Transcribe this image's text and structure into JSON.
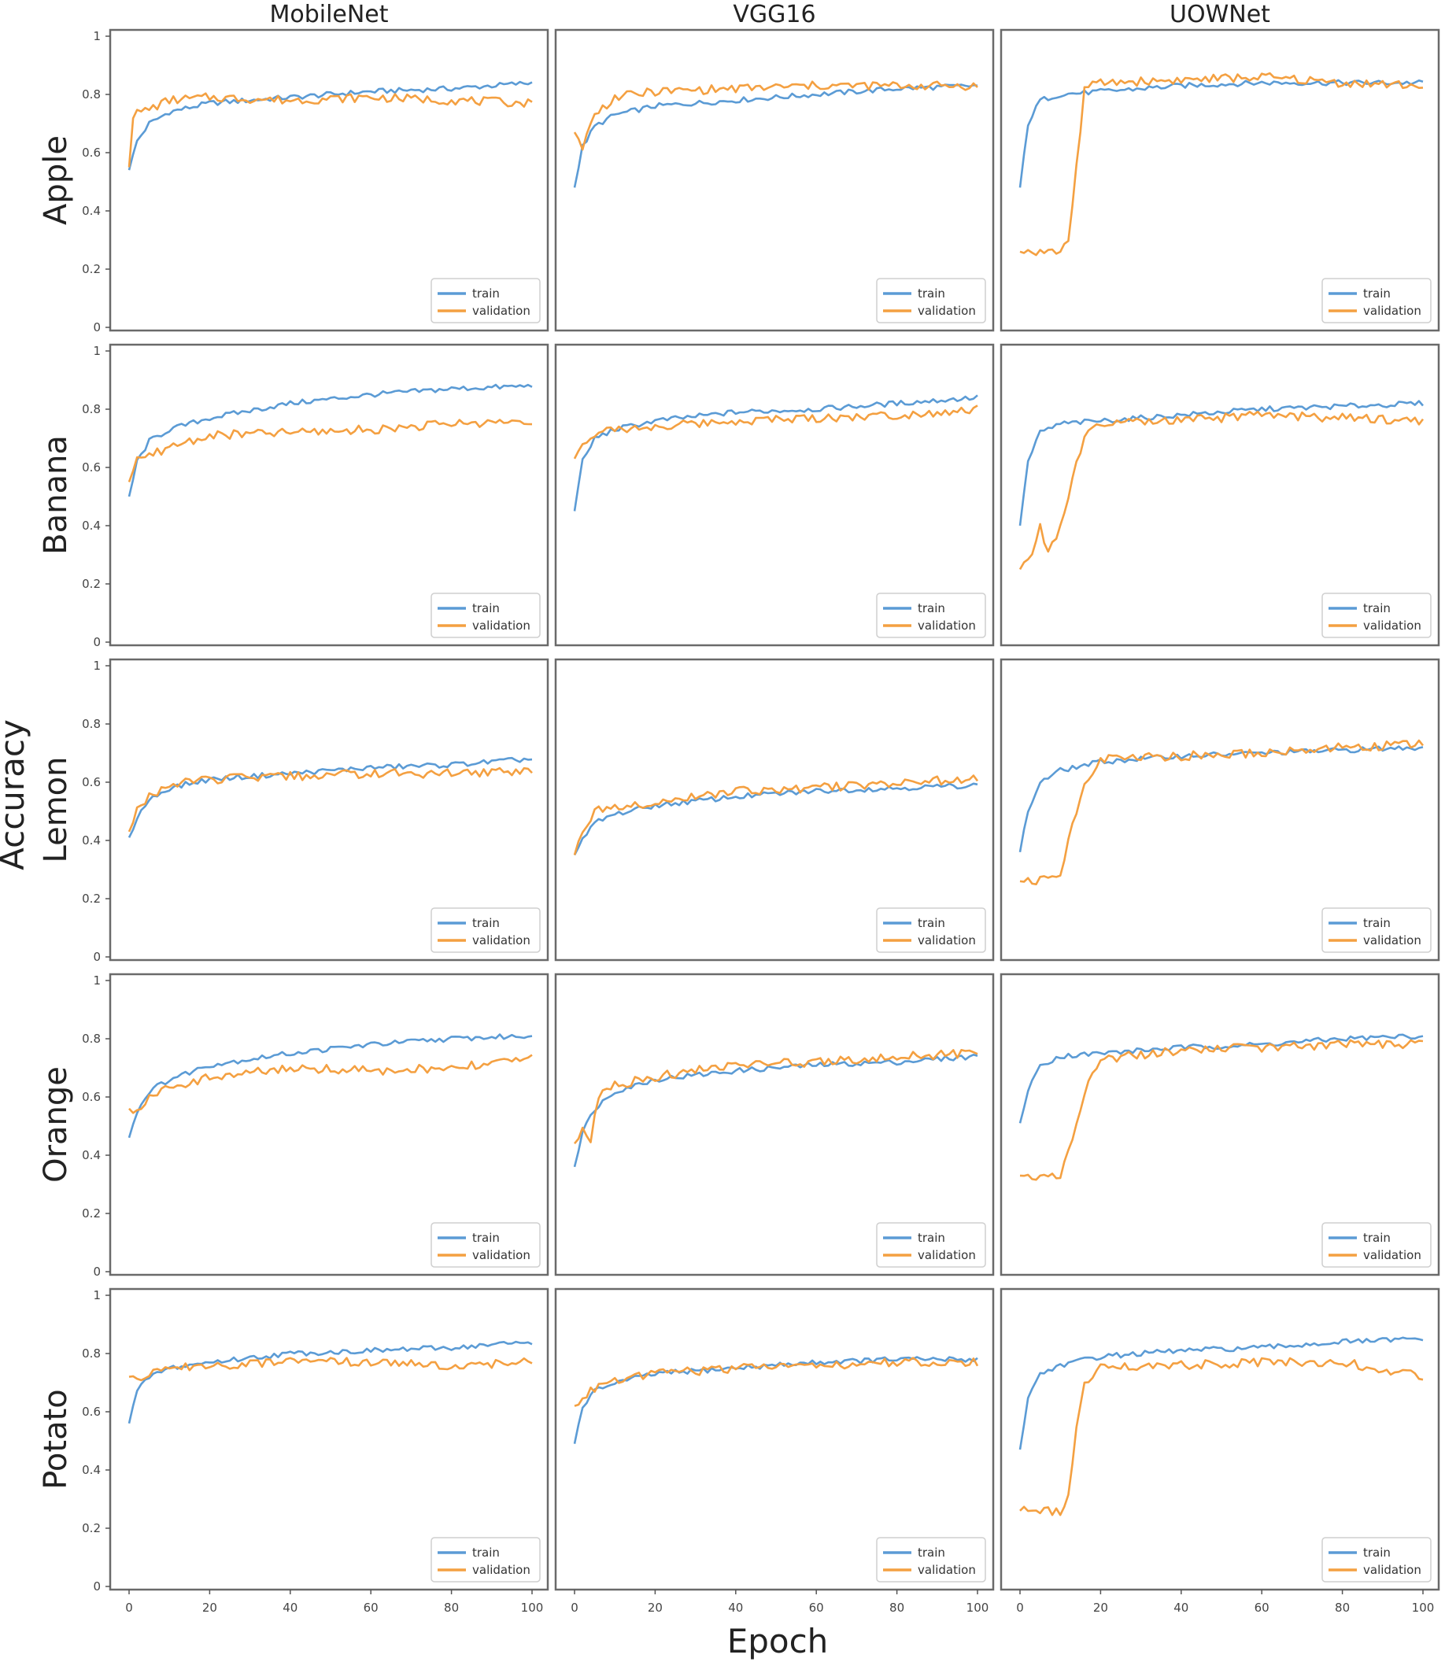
{
  "chart_data": {
    "type": "line",
    "title": "",
    "ylabel": "Accuracy",
    "xlabel": "Epoch",
    "models": [
      "MobileNet",
      "VGG16",
      "UOWNet"
    ],
    "classes": [
      "Apple",
      "Banana",
      "Lemon",
      "Orange",
      "Potato"
    ],
    "xlim": [
      0,
      100
    ],
    "ylim": [
      0.0,
      1.0
    ],
    "x_ticks": [
      0,
      20,
      40,
      60,
      80,
      100
    ],
    "y_ticks": [
      0.0,
      0.2,
      0.4,
      0.6,
      0.8,
      1.0
    ],
    "legend": [
      "train",
      "validation"
    ],
    "legend_position": "lower-right",
    "colors": {
      "train": "#5b9bd5",
      "validation": "#f4a041"
    },
    "panels": [
      {
        "class": "Apple",
        "model": "MobileNet",
        "train": [
          [
            0,
            0.54
          ],
          [
            2,
            0.64
          ],
          [
            5,
            0.7
          ],
          [
            10,
            0.74
          ],
          [
            20,
            0.77
          ],
          [
            40,
            0.79
          ],
          [
            60,
            0.81
          ],
          [
            80,
            0.82
          ],
          [
            100,
            0.84
          ]
        ],
        "validation": [
          [
            0,
            0.55
          ],
          [
            1,
            0.73
          ],
          [
            5,
            0.75
          ],
          [
            10,
            0.78
          ],
          [
            20,
            0.79
          ],
          [
            40,
            0.78
          ],
          [
            60,
            0.79
          ],
          [
            80,
            0.78
          ],
          [
            100,
            0.77
          ]
        ]
      },
      {
        "class": "Apple",
        "model": "VGG16",
        "train": [
          [
            0,
            0.48
          ],
          [
            2,
            0.62
          ],
          [
            5,
            0.69
          ],
          [
            10,
            0.73
          ],
          [
            20,
            0.76
          ],
          [
            40,
            0.78
          ],
          [
            60,
            0.8
          ],
          [
            80,
            0.82
          ],
          [
            100,
            0.83
          ]
        ],
        "validation": [
          [
            0,
            0.67
          ],
          [
            2,
            0.62
          ],
          [
            5,
            0.73
          ],
          [
            10,
            0.79
          ],
          [
            20,
            0.81
          ],
          [
            40,
            0.82
          ],
          [
            60,
            0.83
          ],
          [
            80,
            0.83
          ],
          [
            100,
            0.83
          ]
        ]
      },
      {
        "class": "Apple",
        "model": "UOWNet",
        "train": [
          [
            0,
            0.48
          ],
          [
            2,
            0.7
          ],
          [
            5,
            0.78
          ],
          [
            10,
            0.8
          ],
          [
            20,
            0.81
          ],
          [
            40,
            0.83
          ],
          [
            60,
            0.84
          ],
          [
            80,
            0.84
          ],
          [
            100,
            0.84
          ]
        ],
        "validation": [
          [
            0,
            0.26
          ],
          [
            5,
            0.26
          ],
          [
            10,
            0.26
          ],
          [
            12,
            0.3
          ],
          [
            14,
            0.55
          ],
          [
            16,
            0.82
          ],
          [
            20,
            0.84
          ],
          [
            40,
            0.85
          ],
          [
            60,
            0.86
          ],
          [
            80,
            0.84
          ],
          [
            100,
            0.83
          ]
        ]
      },
      {
        "class": "Banana",
        "model": "MobileNet",
        "train": [
          [
            0,
            0.5
          ],
          [
            2,
            0.62
          ],
          [
            5,
            0.69
          ],
          [
            10,
            0.73
          ],
          [
            20,
            0.77
          ],
          [
            40,
            0.82
          ],
          [
            60,
            0.85
          ],
          [
            80,
            0.87
          ],
          [
            100,
            0.88
          ]
        ],
        "validation": [
          [
            0,
            0.55
          ],
          [
            2,
            0.62
          ],
          [
            5,
            0.64
          ],
          [
            10,
            0.67
          ],
          [
            20,
            0.71
          ],
          [
            40,
            0.72
          ],
          [
            60,
            0.73
          ],
          [
            80,
            0.75
          ],
          [
            100,
            0.76
          ]
        ]
      },
      {
        "class": "Banana",
        "model": "VGG16",
        "train": [
          [
            0,
            0.45
          ],
          [
            2,
            0.62
          ],
          [
            5,
            0.7
          ],
          [
            10,
            0.73
          ],
          [
            20,
            0.76
          ],
          [
            40,
            0.79
          ],
          [
            60,
            0.8
          ],
          [
            80,
            0.82
          ],
          [
            100,
            0.84
          ]
        ],
        "validation": [
          [
            0,
            0.63
          ],
          [
            2,
            0.67
          ],
          [
            5,
            0.71
          ],
          [
            10,
            0.73
          ],
          [
            20,
            0.74
          ],
          [
            40,
            0.76
          ],
          [
            60,
            0.77
          ],
          [
            80,
            0.78
          ],
          [
            100,
            0.8
          ]
        ]
      },
      {
        "class": "Banana",
        "model": "UOWNet",
        "train": [
          [
            0,
            0.4
          ],
          [
            2,
            0.62
          ],
          [
            5,
            0.72
          ],
          [
            10,
            0.75
          ],
          [
            20,
            0.76
          ],
          [
            40,
            0.78
          ],
          [
            60,
            0.8
          ],
          [
            80,
            0.81
          ],
          [
            100,
            0.82
          ]
        ],
        "validation": [
          [
            0,
            0.25
          ],
          [
            3,
            0.3
          ],
          [
            5,
            0.4
          ],
          [
            7,
            0.3
          ],
          [
            10,
            0.4
          ],
          [
            13,
            0.56
          ],
          [
            16,
            0.7
          ],
          [
            20,
            0.75
          ],
          [
            40,
            0.76
          ],
          [
            60,
            0.78
          ],
          [
            80,
            0.77
          ],
          [
            100,
            0.76
          ]
        ]
      },
      {
        "class": "Lemon",
        "model": "MobileNet",
        "train": [
          [
            0,
            0.41
          ],
          [
            2,
            0.48
          ],
          [
            5,
            0.54
          ],
          [
            10,
            0.58
          ],
          [
            20,
            0.61
          ],
          [
            40,
            0.63
          ],
          [
            60,
            0.65
          ],
          [
            80,
            0.66
          ],
          [
            100,
            0.68
          ]
        ],
        "validation": [
          [
            0,
            0.43
          ],
          [
            2,
            0.5
          ],
          [
            5,
            0.55
          ],
          [
            10,
            0.59
          ],
          [
            20,
            0.61
          ],
          [
            40,
            0.62
          ],
          [
            60,
            0.63
          ],
          [
            80,
            0.63
          ],
          [
            100,
            0.64
          ]
        ]
      },
      {
        "class": "Lemon",
        "model": "VGG16",
        "train": [
          [
            0,
            0.35
          ],
          [
            2,
            0.4
          ],
          [
            5,
            0.46
          ],
          [
            10,
            0.49
          ],
          [
            20,
            0.52
          ],
          [
            40,
            0.55
          ],
          [
            60,
            0.57
          ],
          [
            80,
            0.58
          ],
          [
            100,
            0.59
          ]
        ],
        "validation": [
          [
            0,
            0.35
          ],
          [
            2,
            0.43
          ],
          [
            5,
            0.5
          ],
          [
            10,
            0.52
          ],
          [
            20,
            0.53
          ],
          [
            40,
            0.57
          ],
          [
            60,
            0.58
          ],
          [
            80,
            0.6
          ],
          [
            100,
            0.61
          ]
        ]
      },
      {
        "class": "Lemon",
        "model": "UOWNet",
        "train": [
          [
            0,
            0.36
          ],
          [
            2,
            0.5
          ],
          [
            5,
            0.6
          ],
          [
            10,
            0.64
          ],
          [
            20,
            0.67
          ],
          [
            40,
            0.69
          ],
          [
            60,
            0.7
          ],
          [
            80,
            0.71
          ],
          [
            100,
            0.72
          ]
        ],
        "validation": [
          [
            0,
            0.26
          ],
          [
            5,
            0.26
          ],
          [
            10,
            0.28
          ],
          [
            13,
            0.45
          ],
          [
            16,
            0.6
          ],
          [
            20,
            0.68
          ],
          [
            40,
            0.69
          ],
          [
            60,
            0.7
          ],
          [
            80,
            0.72
          ],
          [
            100,
            0.73
          ]
        ]
      },
      {
        "class": "Orange",
        "model": "MobileNet",
        "train": [
          [
            0,
            0.46
          ],
          [
            2,
            0.55
          ],
          [
            5,
            0.62
          ],
          [
            10,
            0.66
          ],
          [
            20,
            0.71
          ],
          [
            40,
            0.75
          ],
          [
            60,
            0.78
          ],
          [
            80,
            0.8
          ],
          [
            100,
            0.81
          ]
        ],
        "validation": [
          [
            0,
            0.56
          ],
          [
            2,
            0.55
          ],
          [
            5,
            0.6
          ],
          [
            10,
            0.63
          ],
          [
            20,
            0.67
          ],
          [
            40,
            0.7
          ],
          [
            60,
            0.69
          ],
          [
            80,
            0.7
          ],
          [
            100,
            0.73
          ]
        ]
      },
      {
        "class": "Orange",
        "model": "VGG16",
        "train": [
          [
            0,
            0.36
          ],
          [
            2,
            0.48
          ],
          [
            5,
            0.56
          ],
          [
            10,
            0.62
          ],
          [
            20,
            0.66
          ],
          [
            40,
            0.69
          ],
          [
            60,
            0.71
          ],
          [
            80,
            0.72
          ],
          [
            100,
            0.74
          ]
        ],
        "validation": [
          [
            0,
            0.44
          ],
          [
            2,
            0.5
          ],
          [
            4,
            0.45
          ],
          [
            6,
            0.6
          ],
          [
            10,
            0.64
          ],
          [
            20,
            0.67
          ],
          [
            40,
            0.71
          ],
          [
            60,
            0.72
          ],
          [
            80,
            0.74
          ],
          [
            100,
            0.75
          ]
        ]
      },
      {
        "class": "Orange",
        "model": "UOWNet",
        "train": [
          [
            0,
            0.51
          ],
          [
            2,
            0.62
          ],
          [
            5,
            0.71
          ],
          [
            10,
            0.74
          ],
          [
            20,
            0.75
          ],
          [
            40,
            0.77
          ],
          [
            60,
            0.78
          ],
          [
            80,
            0.8
          ],
          [
            100,
            0.81
          ]
        ],
        "validation": [
          [
            0,
            0.33
          ],
          [
            5,
            0.33
          ],
          [
            10,
            0.33
          ],
          [
            13,
            0.45
          ],
          [
            16,
            0.62
          ],
          [
            20,
            0.73
          ],
          [
            40,
            0.76
          ],
          [
            60,
            0.77
          ],
          [
            80,
            0.78
          ],
          [
            100,
            0.78
          ]
        ]
      },
      {
        "class": "Potato",
        "model": "MobileNet",
        "train": [
          [
            0,
            0.56
          ],
          [
            2,
            0.67
          ],
          [
            5,
            0.72
          ],
          [
            10,
            0.75
          ],
          [
            20,
            0.77
          ],
          [
            40,
            0.8
          ],
          [
            60,
            0.81
          ],
          [
            80,
            0.82
          ],
          [
            100,
            0.84
          ]
        ],
        "validation": [
          [
            0,
            0.72
          ],
          [
            2,
            0.7
          ],
          [
            5,
            0.73
          ],
          [
            10,
            0.75
          ],
          [
            20,
            0.76
          ],
          [
            40,
            0.77
          ],
          [
            60,
            0.77
          ],
          [
            80,
            0.76
          ],
          [
            100,
            0.77
          ]
        ]
      },
      {
        "class": "Potato",
        "model": "VGG16",
        "train": [
          [
            0,
            0.49
          ],
          [
            2,
            0.62
          ],
          [
            5,
            0.67
          ],
          [
            10,
            0.7
          ],
          [
            20,
            0.73
          ],
          [
            40,
            0.75
          ],
          [
            60,
            0.77
          ],
          [
            80,
            0.78
          ],
          [
            100,
            0.78
          ]
        ],
        "validation": [
          [
            0,
            0.62
          ],
          [
            2,
            0.65
          ],
          [
            5,
            0.68
          ],
          [
            10,
            0.71
          ],
          [
            20,
            0.73
          ],
          [
            40,
            0.75
          ],
          [
            60,
            0.76
          ],
          [
            80,
            0.77
          ],
          [
            100,
            0.77
          ]
        ]
      },
      {
        "class": "Potato",
        "model": "UOWNet",
        "train": [
          [
            0,
            0.47
          ],
          [
            2,
            0.65
          ],
          [
            5,
            0.73
          ],
          [
            10,
            0.76
          ],
          [
            20,
            0.79
          ],
          [
            40,
            0.81
          ],
          [
            60,
            0.82
          ],
          [
            80,
            0.84
          ],
          [
            100,
            0.85
          ]
        ],
        "validation": [
          [
            0,
            0.26
          ],
          [
            5,
            0.26
          ],
          [
            10,
            0.26
          ],
          [
            12,
            0.3
          ],
          [
            14,
            0.55
          ],
          [
            16,
            0.7
          ],
          [
            20,
            0.75
          ],
          [
            40,
            0.76
          ],
          [
            60,
            0.77
          ],
          [
            80,
            0.77
          ],
          [
            100,
            0.72
          ]
        ]
      }
    ]
  }
}
